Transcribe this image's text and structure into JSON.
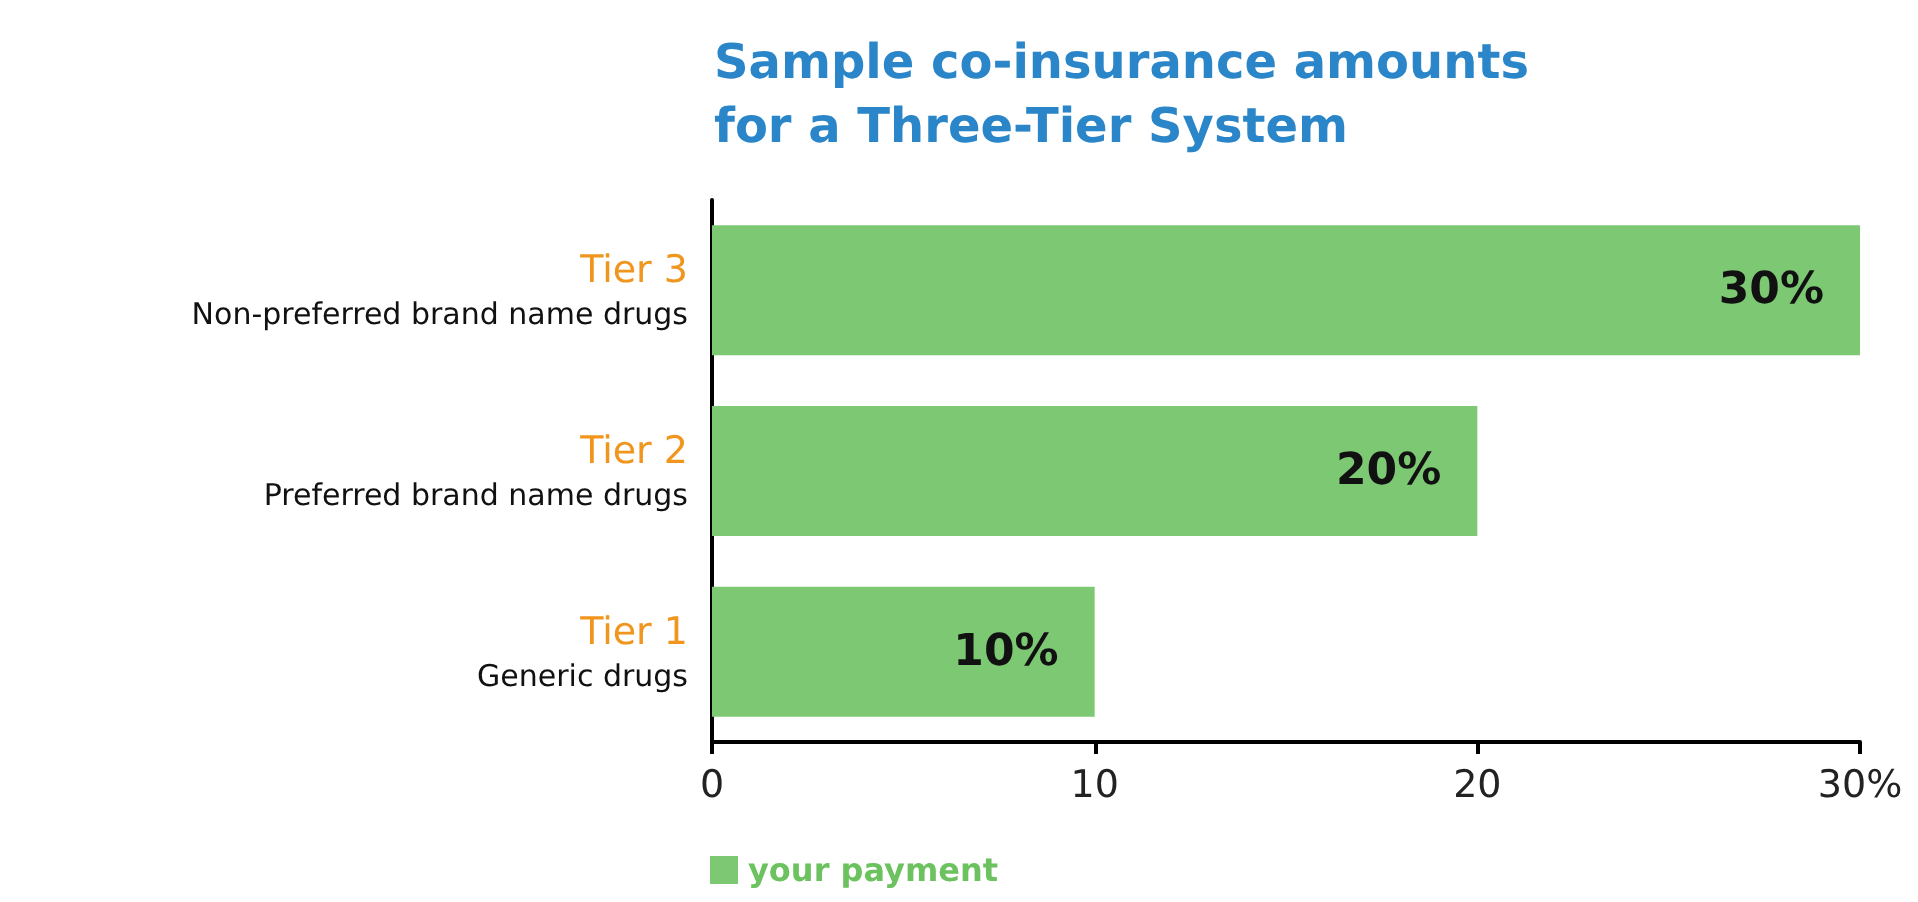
{
  "chart_data": {
    "type": "bar",
    "orientation": "horizontal",
    "title": "Sample co-insurance amounts\nfor a Three-Tier System",
    "categories": [
      "Tier 3\nNon-preferred brand name drugs",
      "Tier 2\nPreferred brand name drugs",
      "Tier 1\nGeneric drugs"
    ],
    "series": [
      {
        "name": "your payment",
        "color": "#7dc873",
        "values": [
          30,
          20,
          10
        ],
        "value_labels": [
          "30%",
          "20%",
          "10%"
        ]
      }
    ],
    "xlim": [
      0,
      30
    ],
    "xticks": [
      0,
      10,
      20,
      {
        "value": 30,
        "label": "30%"
      }
    ],
    "grid": false,
    "legend": "bottom left"
  }
}
